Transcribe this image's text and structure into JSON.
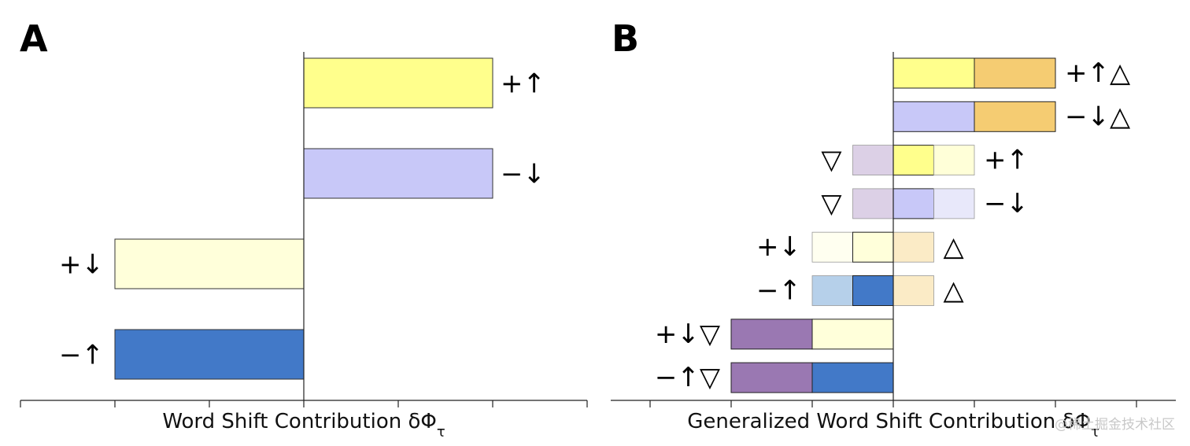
{
  "chart_data": [
    {
      "type": "bar",
      "orientation": "horizontal",
      "panel_label": "A",
      "xlabel": "Word Shift Contribution δΦ",
      "xlabel_sub": "τ",
      "bars": [
        {
          "label": "+↑",
          "value": 2.0,
          "color": "#ffff8c"
        },
        {
          "label": "−↓",
          "value": 2.0,
          "color": "#c8c8f8"
        },
        {
          "label": "+↓",
          "value": -2.0,
          "color": "#ffffda"
        },
        {
          "label": "−↑",
          "value": -2.0,
          "color": "#4279c8"
        }
      ]
    },
    {
      "type": "bar",
      "orientation": "horizontal",
      "stacked": true,
      "panel_label": "B",
      "xlabel": "Generalized Word Shift Contribution δΦ",
      "xlabel_sub": "τ",
      "bars": [
        {
          "left_label": "",
          "right_label": "+↑△",
          "segments": [
            {
              "start": 0,
              "end": 1.0,
              "color": "#ffff8c",
              "faded": false
            },
            {
              "start": 1.0,
              "end": 2.0,
              "color": "#f5cc72",
              "faded": false
            }
          ]
        },
        {
          "left_label": "",
          "right_label": "−↓△",
          "segments": [
            {
              "start": 0,
              "end": 1.0,
              "color": "#c8c8f8",
              "faded": false
            },
            {
              "start": 1.0,
              "end": 2.0,
              "color": "#f5cc72",
              "faded": false
            }
          ]
        },
        {
          "left_label": "▽",
          "right_label": "+↑",
          "segments": [
            {
              "start": -0.5,
              "end": 0,
              "color": "#dcd0e6",
              "faded": true
            },
            {
              "start": 0,
              "end": 0.5,
              "color": "#ffff8c",
              "faded": false
            },
            {
              "start": 0.5,
              "end": 1.0,
              "color": "#ffffd8",
              "faded": true
            }
          ]
        },
        {
          "left_label": "▽",
          "right_label": "−↓",
          "segments": [
            {
              "start": -0.5,
              "end": 0,
              "color": "#dcd0e6",
              "faded": true
            },
            {
              "start": 0,
              "end": 0.5,
              "color": "#c8c8f8",
              "faded": false
            },
            {
              "start": 0.5,
              "end": 1.0,
              "color": "#e8e8fa",
              "faded": true
            }
          ]
        },
        {
          "left_label": "+↓",
          "right_label": "△",
          "segments": [
            {
              "start": -1.0,
              "end": -0.5,
              "color": "#fffff0",
              "faded": true
            },
            {
              "start": -0.5,
              "end": 0,
              "color": "#ffffda",
              "faded": false
            },
            {
              "start": 0,
              "end": 0.5,
              "color": "#fbebc6",
              "faded": true
            }
          ]
        },
        {
          "left_label": "−↑",
          "right_label": "△",
          "segments": [
            {
              "start": -1.0,
              "end": -0.5,
              "color": "#b6d0ea",
              "faded": true
            },
            {
              "start": -0.5,
              "end": 0,
              "color": "#4279c8",
              "faded": false
            },
            {
              "start": 0,
              "end": 0.5,
              "color": "#fbebc6",
              "faded": true
            }
          ]
        },
        {
          "left_label": "+↓▽",
          "right_label": "",
          "segments": [
            {
              "start": -2.0,
              "end": -1.0,
              "color": "#9a78b2",
              "faded": false
            },
            {
              "start": -1.0,
              "end": 0,
              "color": "#ffffda",
              "faded": false
            }
          ]
        },
        {
          "left_label": "−↑▽",
          "right_label": "",
          "segments": [
            {
              "start": -2.0,
              "end": -1.0,
              "color": "#9a78b2",
              "faded": false
            },
            {
              "start": -1.0,
              "end": 0,
              "color": "#4279c8",
              "faded": false
            }
          ]
        }
      ]
    }
  ],
  "watermark": "@稀土掘金技术社区"
}
